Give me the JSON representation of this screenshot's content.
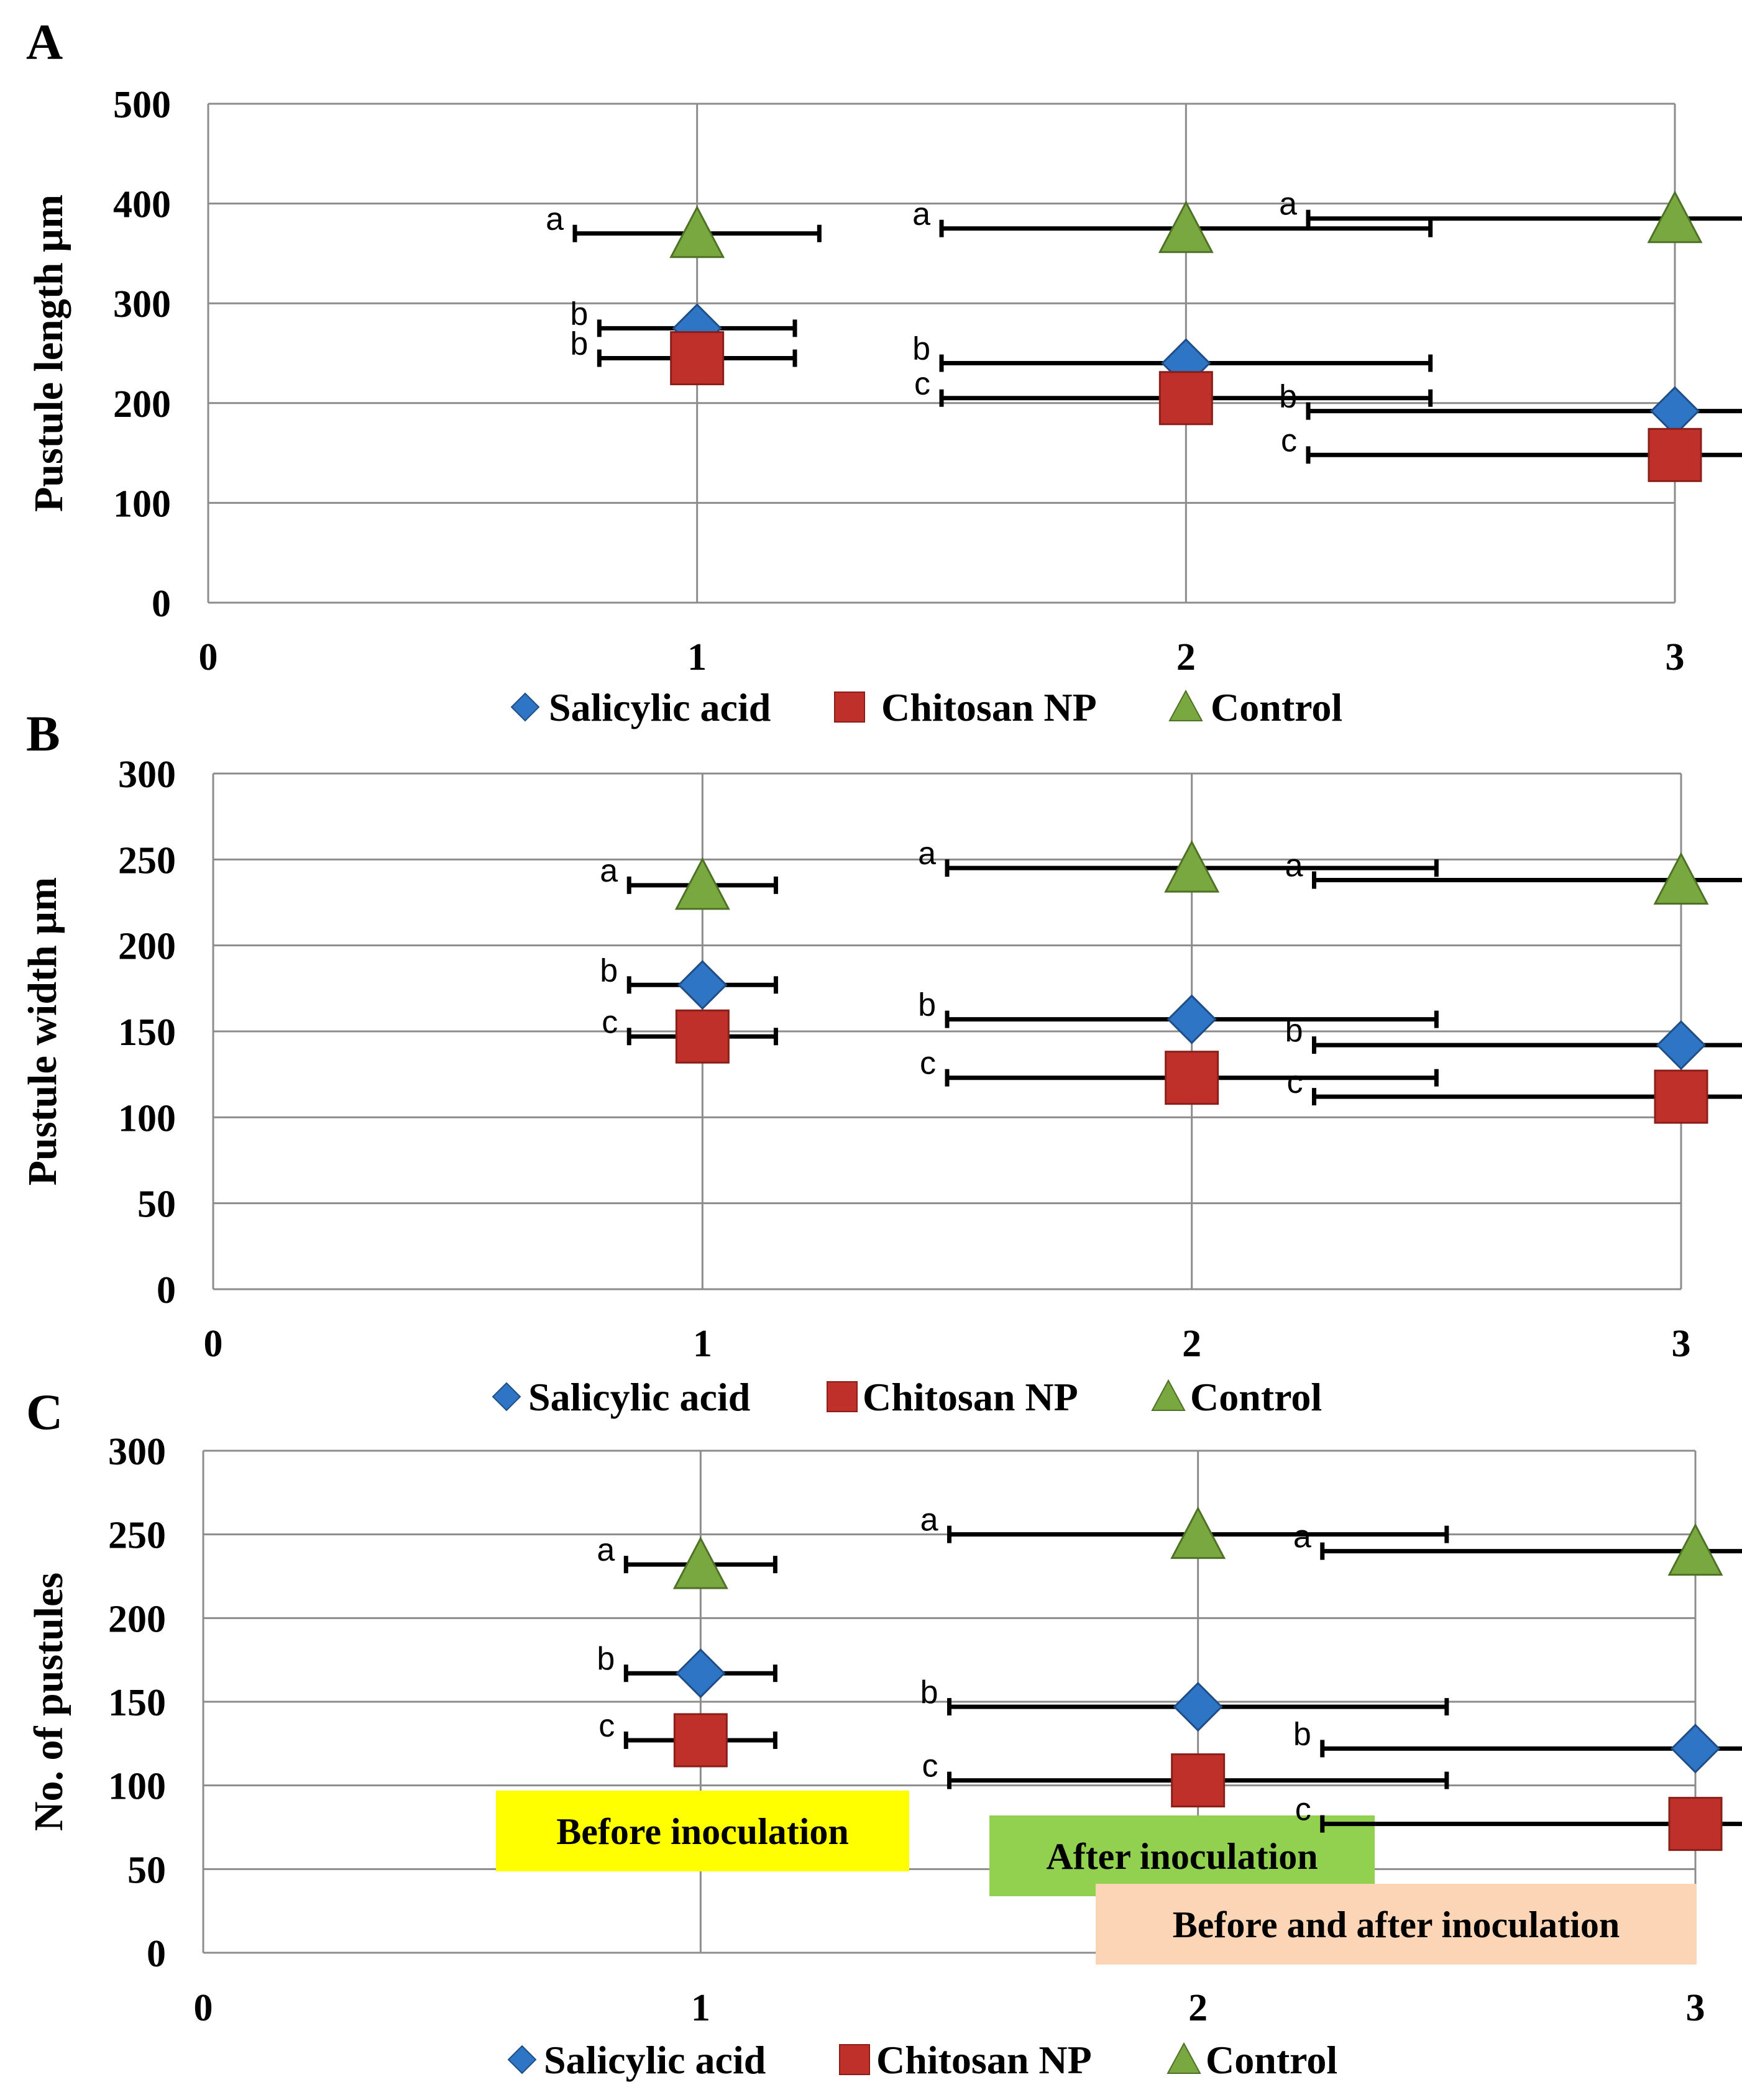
{
  "chart_data": [
    {
      "type": "scatter",
      "panel_label": "A",
      "ylabel": "Pustule length µm",
      "xlabel": "",
      "xlim": [
        0,
        3
      ],
      "ylim": [
        0,
        500
      ],
      "x_ticks": [
        "0",
        "1",
        "2",
        "3"
      ],
      "y_ticks": [
        "0",
        "100",
        "200",
        "300",
        "400",
        "500"
      ],
      "grid": true,
      "legend_position": "bottom",
      "series": [
        {
          "name": "Salicylic acid",
          "color": "#2e75c6",
          "marker": "diamond",
          "points": [
            {
              "x": 1,
              "y": 275,
              "err": 20,
              "letter": "b"
            },
            {
              "x": 2,
              "y": 240,
              "err": 50,
              "letter": "b"
            },
            {
              "x": 3,
              "y": 192,
              "err": 75,
              "letter": "b"
            }
          ]
        },
        {
          "name": "Chitosan NP",
          "color": "#c0302a",
          "marker": "square",
          "points": [
            {
              "x": 1,
              "y": 245,
              "err": 20,
              "letter": "b"
            },
            {
              "x": 2,
              "y": 205,
              "err": 50,
              "letter": "c"
            },
            {
              "x": 3,
              "y": 148,
              "err": 75,
              "letter": "c"
            }
          ]
        },
        {
          "name": "Control",
          "color": "#79a840",
          "marker": "triangle",
          "points": [
            {
              "x": 1,
              "y": 370,
              "err": 25,
              "letter": "a"
            },
            {
              "x": 2,
              "y": 375,
              "err": 50,
              "letter": "a"
            },
            {
              "x": 3,
              "y": 385,
              "err": 75,
              "letter": "a"
            }
          ]
        }
      ]
    },
    {
      "type": "scatter",
      "panel_label": "B",
      "ylabel": "Pustule width µm",
      "xlabel": "",
      "xlim": [
        0,
        3
      ],
      "ylim": [
        0,
        300
      ],
      "x_ticks": [
        "0",
        "1",
        "2",
        "3"
      ],
      "y_ticks": [
        "0",
        "50",
        "100",
        "150",
        "200",
        "250",
        "300"
      ],
      "grid": true,
      "legend_position": "bottom",
      "series": [
        {
          "name": "Salicylic acid",
          "color": "#2e75c6",
          "marker": "diamond",
          "points": [
            {
              "x": 1,
              "y": 177,
              "err": 15,
              "letter": "b"
            },
            {
              "x": 2,
              "y": 157,
              "err": 50,
              "letter": "b"
            },
            {
              "x": 3,
              "y": 142,
              "err": 75,
              "letter": "b"
            }
          ]
        },
        {
          "name": "Chitosan NP",
          "color": "#c0302a",
          "marker": "square",
          "points": [
            {
              "x": 1,
              "y": 147,
              "err": 15,
              "letter": "c"
            },
            {
              "x": 2,
              "y": 123,
              "err": 50,
              "letter": "c"
            },
            {
              "x": 3,
              "y": 112,
              "err": 75,
              "letter": "c"
            }
          ]
        },
        {
          "name": "Control",
          "color": "#79a840",
          "marker": "triangle",
          "points": [
            {
              "x": 1,
              "y": 235,
              "err": 15,
              "letter": "a"
            },
            {
              "x": 2,
              "y": 245,
              "err": 50,
              "letter": "a"
            },
            {
              "x": 3,
              "y": 238,
              "err": 75,
              "letter": "a"
            }
          ]
        }
      ]
    },
    {
      "type": "scatter",
      "panel_label": "C",
      "ylabel": "No. of pustules",
      "xlabel": "",
      "xlim": [
        0,
        3
      ],
      "ylim": [
        0,
        300
      ],
      "x_ticks": [
        "0",
        "1",
        "2",
        "3"
      ],
      "y_ticks": [
        "0",
        "50",
        "100",
        "150",
        "200",
        "250",
        "300"
      ],
      "grid": true,
      "legend_position": "bottom",
      "series": [
        {
          "name": "Salicylic acid",
          "color": "#2e75c6",
          "marker": "diamond",
          "points": [
            {
              "x": 1,
              "y": 167,
              "err": 15,
              "letter": "b"
            },
            {
              "x": 2,
              "y": 147,
              "err": 50,
              "letter": "b"
            },
            {
              "x": 3,
              "y": 122,
              "err": 75,
              "letter": "b"
            }
          ]
        },
        {
          "name": "Chitosan NP",
          "color": "#c0302a",
          "marker": "square",
          "points": [
            {
              "x": 1,
              "y": 127,
              "err": 15,
              "letter": "c"
            },
            {
              "x": 2,
              "y": 103,
              "err": 50,
              "letter": "c"
            },
            {
              "x": 3,
              "y": 77,
              "err": 75,
              "letter": "c"
            }
          ]
        },
        {
          "name": "Control",
          "color": "#79a840",
          "marker": "triangle",
          "points": [
            {
              "x": 1,
              "y": 232,
              "err": 15,
              "letter": "a"
            },
            {
              "x": 2,
              "y": 250,
              "err": 50,
              "letter": "a"
            },
            {
              "x": 3,
              "y": 240,
              "err": 75,
              "letter": "a"
            }
          ]
        }
      ],
      "annotations": [
        {
          "text": "Before inoculation",
          "background": "#ffff00"
        },
        {
          "text": "After inoculation",
          "background": "#92d050"
        },
        {
          "text": "Before and after inoculation",
          "background": "#fbd5b5"
        }
      ]
    }
  ]
}
